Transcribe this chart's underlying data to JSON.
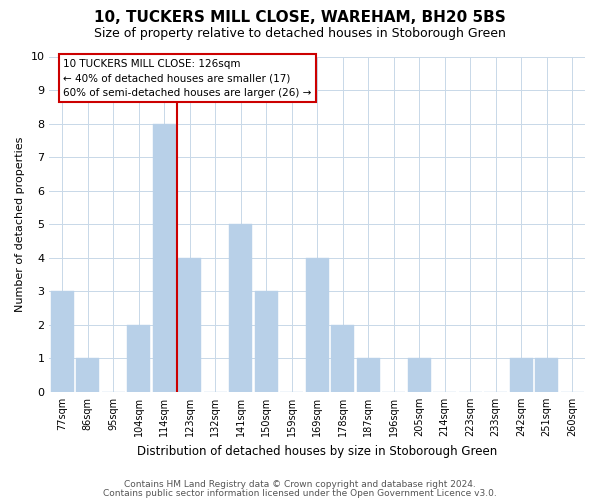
{
  "title": "10, TUCKERS MILL CLOSE, WAREHAM, BH20 5BS",
  "subtitle": "Size of property relative to detached houses in Stoborough Green",
  "xlabel": "Distribution of detached houses by size in Stoborough Green",
  "ylabel": "Number of detached properties",
  "footer_line1": "Contains HM Land Registry data © Crown copyright and database right 2024.",
  "footer_line2": "Contains public sector information licensed under the Open Government Licence v3.0.",
  "bin_labels": [
    "77sqm",
    "86sqm",
    "95sqm",
    "104sqm",
    "114sqm",
    "123sqm",
    "132sqm",
    "141sqm",
    "150sqm",
    "159sqm",
    "169sqm",
    "178sqm",
    "187sqm",
    "196sqm",
    "205sqm",
    "214sqm",
    "223sqm",
    "233sqm",
    "242sqm",
    "251sqm",
    "260sqm"
  ],
  "bar_values": [
    3,
    1,
    0,
    2,
    8,
    4,
    0,
    5,
    3,
    0,
    4,
    2,
    1,
    0,
    1,
    0,
    0,
    0,
    1,
    1,
    0
  ],
  "bar_color": "#b8d0e8",
  "marker_index": 4,
  "marker_label_line1": "10 TUCKERS MILL CLOSE: 126sqm",
  "marker_label_line2": "← 40% of detached houses are smaller (17)",
  "marker_label_line3": "60% of semi-detached houses are larger (26) →",
  "marker_color": "#cc0000",
  "ylim": [
    0,
    10
  ],
  "yticks": [
    0,
    1,
    2,
    3,
    4,
    5,
    6,
    7,
    8,
    9,
    10
  ],
  "background_color": "#ffffff",
  "grid_color": "#c8d8e8",
  "annotation_box_color": "#ffffff",
  "annotation_box_edge": "#cc0000",
  "title_fontsize": 11,
  "subtitle_fontsize": 9,
  "ylabel_fontsize": 8,
  "xlabel_fontsize": 8.5,
  "footer_fontsize": 6.5,
  "footer_color": "#555555"
}
